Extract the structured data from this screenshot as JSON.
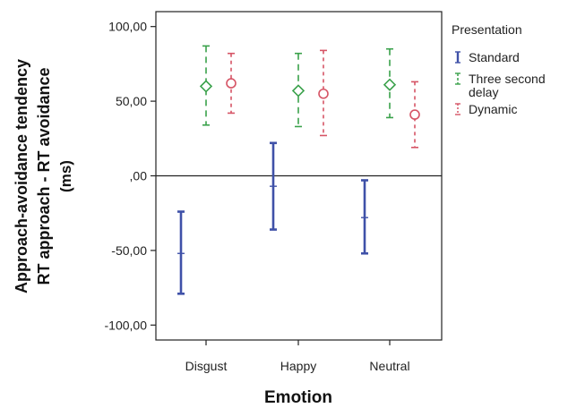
{
  "chart_data": {
    "type": "error-bar",
    "xlabel": "Emotion",
    "ylabel_lines": [
      "Approach-avoidance tendency",
      "RT approach - RT avoidance",
      "(ms)"
    ],
    "categories": [
      "Disgust",
      "Happy",
      "Neutral"
    ],
    "ylim": [
      -110,
      110
    ],
    "y_ticks": [
      100,
      50,
      0,
      -50,
      -100
    ],
    "y_tick_labels": [
      "100,00",
      "50,00",
      ",00",
      "-50,00",
      "-100,00"
    ],
    "reference_line": 0,
    "grid": false,
    "legend": {
      "title": "Presentation",
      "position": "right",
      "entries": [
        {
          "key": "standard",
          "label_lines": [
            "Standard"
          ]
        },
        {
          "key": "three_second_delay",
          "label_lines": [
            "Three second",
            "delay"
          ]
        },
        {
          "key": "dynamic",
          "label_lines": [
            "Dynamic"
          ]
        }
      ]
    },
    "series": [
      {
        "key": "standard",
        "name": "Standard",
        "color": "#3f51a8",
        "line_style": "solid",
        "marker": "none",
        "points": [
          {
            "category": "Disgust",
            "mean": -52,
            "low": -79,
            "high": -24
          },
          {
            "category": "Happy",
            "mean": -7,
            "low": -36,
            "high": 22
          },
          {
            "category": "Neutral",
            "mean": -28,
            "low": -52,
            "high": -3
          }
        ]
      },
      {
        "key": "three_second_delay",
        "name": "Three second delay",
        "color": "#3aa14b",
        "line_style": "dashed",
        "marker": "diamond",
        "points": [
          {
            "category": "Disgust",
            "mean": 60,
            "low": 34,
            "high": 87
          },
          {
            "category": "Happy",
            "mean": 57,
            "low": 33,
            "high": 82
          },
          {
            "category": "Neutral",
            "mean": 61,
            "low": 39,
            "high": 85
          }
        ]
      },
      {
        "key": "dynamic",
        "name": "Dynamic",
        "color": "#d65566",
        "line_style": "dotted",
        "marker": "circle",
        "points": [
          {
            "category": "Disgust",
            "mean": 62,
            "low": 42,
            "high": 82
          },
          {
            "category": "Happy",
            "mean": 55,
            "low": 27,
            "high": 84
          },
          {
            "category": "Neutral",
            "mean": 41,
            "low": 19,
            "high": 63
          }
        ]
      }
    ]
  }
}
